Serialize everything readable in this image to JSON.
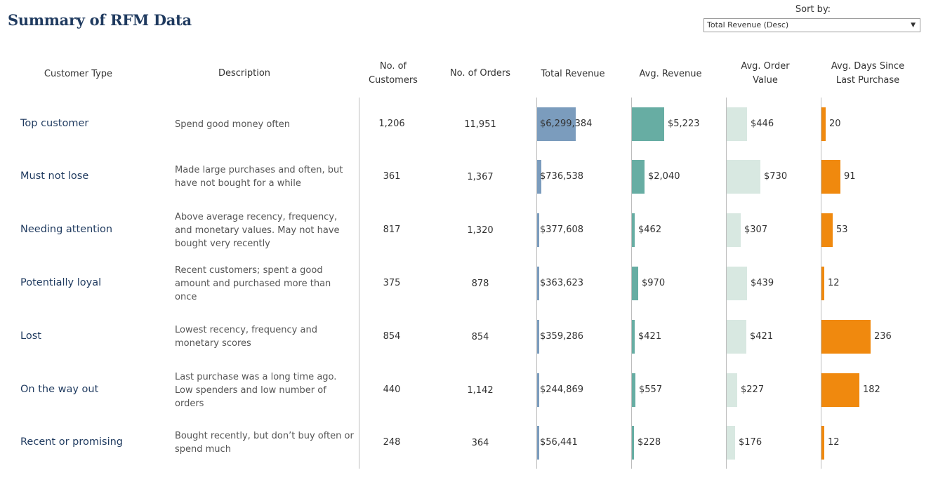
{
  "title": "Summary of RFM Data",
  "sort": {
    "label": "Sort by:",
    "value": "Total Revenue (Desc)"
  },
  "icons": {
    "dropdown": "chevron-down-icon"
  },
  "colors": {
    "title": "#1f3a5f",
    "total_revenue": "#7b9cbd",
    "avg_revenue": "#67ada3",
    "avg_order_value": "#d8e8e1",
    "avg_days": "#f0890e"
  },
  "chart_data": {
    "type": "table",
    "columns": [
      "Customer Type",
      "Description",
      "No. of Customers",
      "No. of Orders",
      "Total Revenue",
      "Avg. Revenue",
      "Avg. Order Value",
      "Avg. Days Since Last Purchase"
    ],
    "rows": [
      {
        "type": "Top customer",
        "description": "Spend good money often",
        "customers": "1,206",
        "orders": "11,951",
        "total_revenue": 6299384,
        "total_revenue_label": "$6,299,384",
        "avg_revenue": 5223,
        "avg_revenue_label": "$5,223",
        "avg_order_value": 446,
        "avg_order_value_label": "$446",
        "avg_days": 20,
        "avg_days_label": "20"
      },
      {
        "type": "Must not lose",
        "description": "Made large purchases and often, but have not bought for a while",
        "customers": "361",
        "orders": "1,367",
        "total_revenue": 736538,
        "total_revenue_label": "$736,538",
        "avg_revenue": 2040,
        "avg_revenue_label": "$2,040",
        "avg_order_value": 730,
        "avg_order_value_label": "$730",
        "avg_days": 91,
        "avg_days_label": "91"
      },
      {
        "type": "Needing attention",
        "description": "Above average recency, frequency, and monetary values. May not have bought very recently",
        "customers": "817",
        "orders": "1,320",
        "total_revenue": 377608,
        "total_revenue_label": "$377,608",
        "avg_revenue": 462,
        "avg_revenue_label": "$462",
        "avg_order_value": 307,
        "avg_order_value_label": "$307",
        "avg_days": 53,
        "avg_days_label": "53"
      },
      {
        "type": "Potentially loyal",
        "description": "Recent customers; spent a good amount and purchased more than once",
        "customers": "375",
        "orders": "878",
        "total_revenue": 363623,
        "total_revenue_label": "$363,623",
        "avg_revenue": 970,
        "avg_revenue_label": "$970",
        "avg_order_value": 439,
        "avg_order_value_label": "$439",
        "avg_days": 12,
        "avg_days_label": "12"
      },
      {
        "type": "Lost",
        "description": "Lowest recency, frequency and monetary scores",
        "customers": "854",
        "orders": "854",
        "total_revenue": 359286,
        "total_revenue_label": "$359,286",
        "avg_revenue": 421,
        "avg_revenue_label": "$421",
        "avg_order_value": 421,
        "avg_order_value_label": "$421",
        "avg_days": 236,
        "avg_days_label": "236"
      },
      {
        "type": "On the way out",
        "description": "Last purchase was a long time ago. Low spenders and low number of orders",
        "customers": "440",
        "orders": "1,142",
        "total_revenue": 244869,
        "total_revenue_label": "$244,869",
        "avg_revenue": 557,
        "avg_revenue_label": "$557",
        "avg_order_value": 227,
        "avg_order_value_label": "$227",
        "avg_days": 182,
        "avg_days_label": "182"
      },
      {
        "type": "Recent or promising",
        "description": "Bought recently, but don’t buy often or spend much",
        "customers": "248",
        "orders": "364",
        "total_revenue": 56441,
        "total_revenue_label": "$56,441",
        "avg_revenue": 228,
        "avg_revenue_label": "$228",
        "avg_order_value": 176,
        "avg_order_value_label": "$176",
        "avg_days": 12,
        "avg_days_label": "12"
      }
    ]
  }
}
